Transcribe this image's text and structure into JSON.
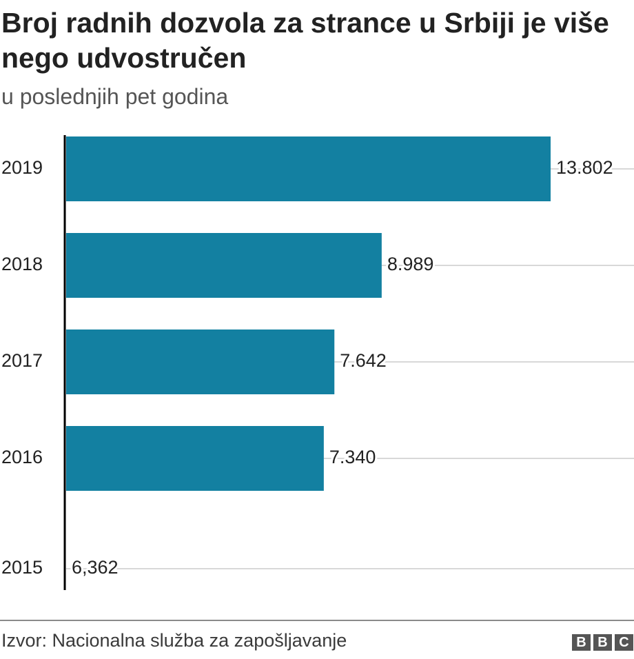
{
  "title": "Broj radnih dozvola za strance u Srbiji je više nego udvostručen",
  "subtitle": "u poslednjih pet godina",
  "source": "Izvor: Nacionalna služba za zapošljavanje",
  "brand": {
    "letters": [
      "B",
      "B",
      "C"
    ],
    "color": "#555555"
  },
  "colors": {
    "bar": "#1380A1",
    "gridline": "#cccccc",
    "axis": "#000000"
  },
  "chart_data": {
    "type": "bar",
    "orientation": "horizontal",
    "title": "Broj radnih dozvola za strance u Srbiji je više nego udvostručen",
    "subtitle": "u poslednjih pet godina",
    "categories": [
      "2019",
      "2018",
      "2017",
      "2016",
      "2015"
    ],
    "values": [
      13802,
      8989,
      7642,
      7340,
      6362
    ],
    "value_labels": [
      "13.802",
      "8.989",
      "7.642",
      "7.340",
      "6,362"
    ],
    "bars_drawn": [
      true,
      true,
      true,
      true,
      false
    ],
    "xlim": [
      0,
      13802
    ],
    "xlabel": "",
    "ylabel": "",
    "grid": true,
    "legend": "none"
  }
}
